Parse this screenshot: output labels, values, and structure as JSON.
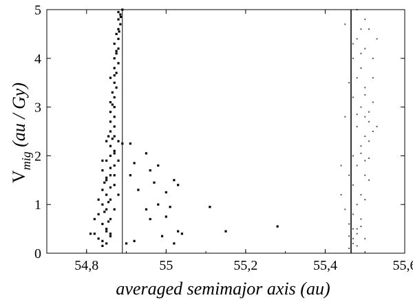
{
  "chart_data": {
    "type": "scatter",
    "title": "",
    "xlabel": "averaged semimajor axis (au)",
    "ylabel_main": "V",
    "ylabel_sub": "mig",
    "ylabel_units": " (au / Gy)",
    "xlim": [
      54.7,
      55.6
    ],
    "ylim": [
      0,
      5
    ],
    "xticks": [
      54.8,
      55.0,
      55.2,
      55.4,
      55.6
    ],
    "xtick_labels": [
      "54,8",
      "55",
      "55,2",
      "55,4",
      "55,6"
    ],
    "yticks": [
      0,
      1,
      2,
      3,
      4,
      5
    ],
    "ytick_labels": [
      "0",
      "1",
      "2",
      "3",
      "4",
      "5"
    ],
    "grid": false,
    "vlines": [
      54.89,
      55.465
    ],
    "series": [
      {
        "marker": "dark",
        "points": [
          [
            54.84,
            0.15
          ],
          [
            54.85,
            0.2
          ],
          [
            54.83,
            0.3
          ],
          [
            54.86,
            0.35
          ],
          [
            54.82,
            0.4
          ],
          [
            54.85,
            0.5
          ],
          [
            54.84,
            0.6
          ],
          [
            54.86,
            0.7
          ],
          [
            54.83,
            0.8
          ],
          [
            54.85,
            0.9
          ],
          [
            54.84,
            1.0
          ],
          [
            54.86,
            1.1
          ],
          [
            54.85,
            1.2
          ],
          [
            54.84,
            1.3
          ],
          [
            54.87,
            1.4
          ],
          [
            54.85,
            1.5
          ],
          [
            54.86,
            1.6
          ],
          [
            54.84,
            1.7
          ],
          [
            54.87,
            1.8
          ],
          [
            54.85,
            1.9
          ],
          [
            54.86,
            2.0
          ],
          [
            54.87,
            2.1
          ],
          [
            54.86,
            2.2
          ],
          [
            54.85,
            2.3
          ],
          [
            54.87,
            2.4
          ],
          [
            54.86,
            2.5
          ],
          [
            54.87,
            2.6
          ],
          [
            54.86,
            2.7
          ],
          [
            54.87,
            2.8
          ],
          [
            54.86,
            2.9
          ],
          [
            54.87,
            3.0
          ],
          [
            54.86,
            3.1
          ],
          [
            54.87,
            3.2
          ],
          [
            54.865,
            3.3
          ],
          [
            54.875,
            3.4
          ],
          [
            54.87,
            3.5
          ],
          [
            54.86,
            3.6
          ],
          [
            54.875,
            3.7
          ],
          [
            54.87,
            3.8
          ],
          [
            54.88,
            3.9
          ],
          [
            54.87,
            4.0
          ],
          [
            54.875,
            4.1
          ],
          [
            54.88,
            4.2
          ],
          [
            54.87,
            4.3
          ],
          [
            54.88,
            4.4
          ],
          [
            54.875,
            4.5
          ],
          [
            54.88,
            4.6
          ],
          [
            54.885,
            4.7
          ],
          [
            54.88,
            4.8
          ],
          [
            54.885,
            4.9
          ],
          [
            54.88,
            4.95
          ],
          [
            54.89,
            5.0
          ],
          [
            54.88,
            2.3
          ],
          [
            54.89,
            2.25
          ],
          [
            54.88,
            1.9
          ],
          [
            54.87,
            1.6
          ],
          [
            54.88,
            1.2
          ],
          [
            54.87,
            0.9
          ],
          [
            54.86,
            0.4
          ],
          [
            54.85,
            1.55
          ],
          [
            54.81,
            0.4
          ],
          [
            54.82,
            0.7
          ],
          [
            54.83,
            1.1
          ],
          [
            54.84,
            1.9
          ],
          [
            54.855,
            2.4
          ],
          [
            54.865,
            3.05
          ],
          [
            54.87,
            3.65
          ],
          [
            54.875,
            4.15
          ],
          [
            54.882,
            4.55
          ],
          [
            54.886,
            4.85
          ],
          [
            54.84,
            0.25
          ],
          [
            54.85,
            0.45
          ],
          [
            54.855,
            0.65
          ],
          [
            54.845,
            0.85
          ],
          [
            54.855,
            1.05
          ],
          [
            54.86,
            1.35
          ],
          [
            54.845,
            1.45
          ],
          [
            54.86,
            1.75
          ],
          [
            54.87,
            2.05
          ],
          [
            54.865,
            2.35
          ]
        ]
      },
      {
        "marker": "dark",
        "points": [
          [
            54.91,
            2.25
          ],
          [
            54.92,
            1.85
          ],
          [
            54.95,
            2.05
          ],
          [
            54.96,
            1.7
          ],
          [
            54.98,
            1.8
          ],
          [
            55.0,
            1.25
          ],
          [
            55.02,
            1.5
          ],
          [
            55.03,
            1.4
          ],
          [
            54.93,
            1.3
          ],
          [
            54.97,
            1.45
          ],
          [
            54.95,
            0.9
          ],
          [
            54.98,
            1.0
          ],
          [
            55.0,
            0.75
          ],
          [
            55.01,
            0.95
          ],
          [
            55.03,
            0.45
          ],
          [
            55.04,
            0.4
          ],
          [
            55.11,
            0.95
          ],
          [
            55.15,
            0.45
          ],
          [
            55.28,
            0.55
          ],
          [
            54.9,
            0.2
          ],
          [
            54.92,
            0.25
          ],
          [
            54.96,
            0.7
          ],
          [
            54.99,
            0.35
          ],
          [
            55.02,
            0.2
          ],
          [
            54.91,
            1.6
          ]
        ]
      },
      {
        "marker": "light",
        "points": [
          [
            55.46,
            0.1
          ],
          [
            55.47,
            0.2
          ],
          [
            55.47,
            0.3
          ],
          [
            55.48,
            0.5
          ],
          [
            55.46,
            0.6
          ],
          [
            55.47,
            0.8
          ],
          [
            55.48,
            1.0
          ],
          [
            55.49,
            1.2
          ],
          [
            55.47,
            1.4
          ],
          [
            55.46,
            1.6
          ],
          [
            55.48,
            1.8
          ],
          [
            55.47,
            2.0
          ],
          [
            55.49,
            2.2
          ],
          [
            55.5,
            2.4
          ],
          [
            55.48,
            2.6
          ],
          [
            55.5,
            2.8
          ],
          [
            55.49,
            3.0
          ],
          [
            55.47,
            3.2
          ],
          [
            55.5,
            3.4
          ],
          [
            55.48,
            3.6
          ],
          [
            55.49,
            3.8
          ],
          [
            55.47,
            4.0
          ],
          [
            55.5,
            4.2
          ],
          [
            55.48,
            4.4
          ],
          [
            55.49,
            4.6
          ],
          [
            55.5,
            4.8
          ],
          [
            55.48,
            5.0
          ],
          [
            55.51,
            2.7
          ],
          [
            55.52,
            2.5
          ],
          [
            55.51,
            2.9
          ],
          [
            55.52,
            3.1
          ],
          [
            55.51,
            2.3
          ],
          [
            55.5,
            1.9
          ],
          [
            55.51,
            1.5
          ],
          [
            55.5,
            1.1
          ],
          [
            55.49,
            0.7
          ],
          [
            55.48,
            0.4
          ],
          [
            55.45,
            0.9
          ],
          [
            55.44,
            1.2
          ],
          [
            55.44,
            1.8
          ],
          [
            55.45,
            2.8
          ],
          [
            55.46,
            3.5
          ],
          [
            55.47,
            4.3
          ],
          [
            55.45,
            4.7
          ],
          [
            55.52,
            4.0
          ],
          [
            55.53,
            4.4
          ],
          [
            55.51,
            4.6
          ],
          [
            55.52,
            3.6
          ],
          [
            55.53,
            2.6
          ],
          [
            55.5,
            0.3
          ],
          [
            55.49,
            0.55
          ],
          [
            55.47,
            0.5
          ],
          [
            55.46,
            0.35
          ],
          [
            55.48,
            0.15
          ],
          [
            55.5,
            1.6
          ],
          [
            55.49,
            2.05
          ],
          [
            55.51,
            1.95
          ],
          [
            55.48,
            2.85
          ],
          [
            55.5,
            3.25
          ],
          [
            55.49,
            4.1
          ]
        ]
      }
    ]
  }
}
